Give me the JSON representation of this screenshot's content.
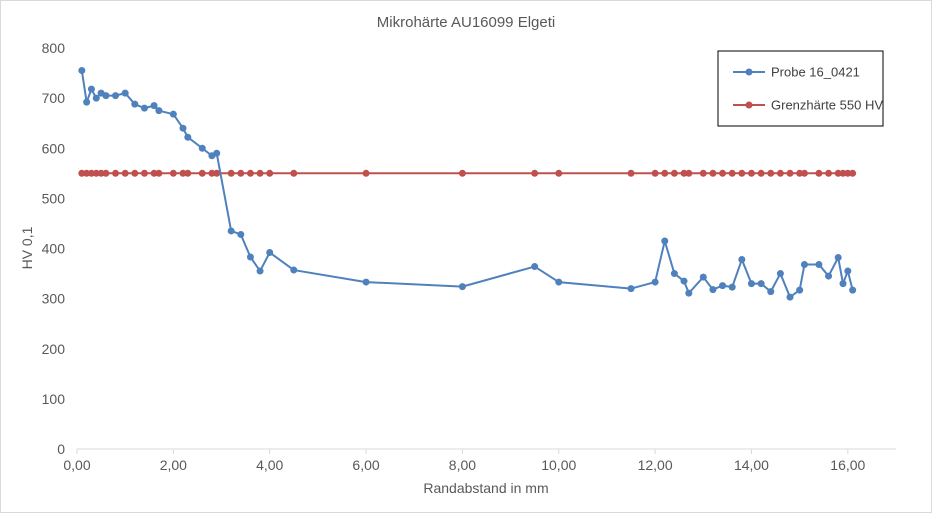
{
  "chart_data": {
    "type": "line",
    "title": "Mikrohärte AU16099 Elgeti",
    "xlabel": "Randabstand in  mm",
    "ylabel": "HV 0,1",
    "xlim": [
      0,
      17
    ],
    "ylim": [
      0,
      800
    ],
    "x_ticks": [
      0,
      2,
      4,
      6,
      8,
      10,
      12,
      14,
      16
    ],
    "x_tick_labels": [
      "0,00",
      "2,00",
      "4,00",
      "6,00",
      "8,00",
      "10,00",
      "12,00",
      "14,00",
      "16,00"
    ],
    "y_ticks": [
      0,
      100,
      200,
      300,
      400,
      500,
      600,
      700,
      800
    ],
    "y_tick_labels": [
      "0",
      "100",
      "200",
      "300",
      "400",
      "500",
      "600",
      "700",
      "800"
    ],
    "grid": false,
    "legend_position": "top-right",
    "series": [
      {
        "name": "Probe 16_0421",
        "color": "#4f81bd",
        "x": [
          0.1,
          0.2,
          0.3,
          0.4,
          0.5,
          0.6,
          0.8,
          1.0,
          1.2,
          1.4,
          1.6,
          1.7,
          2.0,
          2.2,
          2.3,
          2.6,
          2.8,
          2.9,
          3.2,
          3.4,
          3.6,
          3.8,
          4.0,
          4.5,
          6.0,
          8.0,
          9.5,
          10.0,
          11.5,
          12.0,
          12.2,
          12.4,
          12.6,
          12.7,
          13.0,
          13.2,
          13.4,
          13.6,
          13.8,
          14.0,
          14.2,
          14.4,
          14.6,
          14.8,
          15.0,
          15.1,
          15.4,
          15.6,
          15.8,
          15.9,
          16.0,
          16.1
        ],
        "y": [
          755,
          692,
          718,
          700,
          710,
          705,
          705,
          710,
          688,
          680,
          685,
          675,
          668,
          640,
          622,
          600,
          585,
          590,
          435,
          428,
          383,
          355,
          392,
          357,
          333,
          324,
          364,
          333,
          320,
          333,
          415,
          350,
          335,
          311,
          343,
          318,
          326,
          323,
          378,
          330,
          330,
          314,
          350,
          303,
          317,
          368,
          368,
          345,
          382,
          330,
          355,
          317
        ]
      },
      {
        "name": "Grenzhärte 550 HV",
        "color": "#c0504d",
        "x": [
          0.1,
          0.2,
          0.3,
          0.4,
          0.5,
          0.6,
          0.8,
          1.0,
          1.2,
          1.4,
          1.6,
          1.7,
          2.0,
          2.2,
          2.3,
          2.6,
          2.8,
          2.9,
          3.2,
          3.4,
          3.6,
          3.8,
          4.0,
          4.5,
          6.0,
          8.0,
          9.5,
          10.0,
          11.5,
          12.0,
          12.2,
          12.4,
          12.6,
          12.7,
          13.0,
          13.2,
          13.4,
          13.6,
          13.8,
          14.0,
          14.2,
          14.4,
          14.6,
          14.8,
          15.0,
          15.1,
          15.4,
          15.6,
          15.8,
          15.9,
          16.0,
          16.1
        ],
        "y": [
          550,
          550,
          550,
          550,
          550,
          550,
          550,
          550,
          550,
          550,
          550,
          550,
          550,
          550,
          550,
          550,
          550,
          550,
          550,
          550,
          550,
          550,
          550,
          550,
          550,
          550,
          550,
          550,
          550,
          550,
          550,
          550,
          550,
          550,
          550,
          550,
          550,
          550,
          550,
          550,
          550,
          550,
          550,
          550,
          550,
          550,
          550,
          550,
          550,
          550,
          550,
          550
        ]
      }
    ]
  }
}
